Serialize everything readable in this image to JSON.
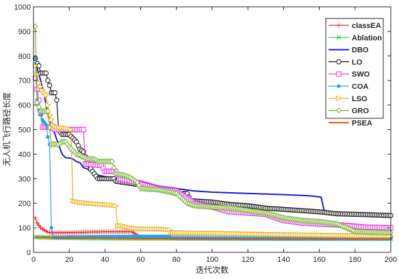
{
  "chart_data": {
    "type": "line",
    "title": "",
    "xlabel": "迭代次数",
    "ylabel": "无人机飞行路径长度",
    "xlim": [
      0,
      200
    ],
    "ylim": [
      0,
      1000
    ],
    "xticks": [
      0,
      20,
      40,
      60,
      80,
      100,
      120,
      140,
      160,
      180,
      200
    ],
    "yticks": [
      0,
      100,
      200,
      300,
      400,
      500,
      600,
      700,
      800,
      900,
      1000
    ],
    "grid": false,
    "legend_position": "top-right",
    "series": [
      {
        "name": "classEA",
        "color": "#e8262b",
        "marker": "plus",
        "points": [
          [
            1,
            140
          ],
          [
            2,
            120
          ],
          [
            4,
            100
          ],
          [
            6,
            90
          ],
          [
            8,
            82
          ],
          [
            10,
            80
          ],
          [
            20,
            80
          ],
          [
            30,
            82
          ],
          [
            40,
            84
          ],
          [
            50,
            84
          ],
          [
            55,
            84
          ],
          [
            60,
            62
          ],
          [
            80,
            62
          ],
          [
            100,
            60
          ],
          [
            150,
            58
          ],
          [
            200,
            58
          ]
        ]
      },
      {
        "name": "Ablation",
        "color": "#3ec03e",
        "marker": "x",
        "points": [
          [
            1,
            62
          ],
          [
            10,
            60
          ],
          [
            30,
            58
          ],
          [
            60,
            57
          ],
          [
            100,
            56
          ],
          [
            150,
            55
          ],
          [
            200,
            55
          ]
        ]
      },
      {
        "name": "DBO",
        "color": "#1b1bd8",
        "marker": "none",
        "points": [
          [
            1,
            765
          ],
          [
            2,
            750
          ],
          [
            4,
            700
          ],
          [
            6,
            640
          ],
          [
            8,
            560
          ],
          [
            10,
            520
          ],
          [
            12,
            480
          ],
          [
            14,
            440
          ],
          [
            16,
            400
          ],
          [
            18,
            385
          ],
          [
            20,
            385
          ],
          [
            22,
            380
          ],
          [
            24,
            370
          ],
          [
            26,
            365
          ],
          [
            28,
            345
          ],
          [
            30,
            340
          ],
          [
            32,
            330
          ],
          [
            36,
            315
          ],
          [
            42,
            305
          ],
          [
            50,
            300
          ],
          [
            60,
            290
          ],
          [
            70,
            270
          ],
          [
            80,
            260
          ],
          [
            90,
            250
          ],
          [
            100,
            245
          ],
          [
            120,
            240
          ],
          [
            140,
            235
          ],
          [
            155,
            230
          ],
          [
            161,
            225
          ],
          [
            163,
            160
          ],
          [
            170,
            157
          ],
          [
            180,
            155
          ],
          [
            190,
            153
          ],
          [
            200,
            152
          ]
        ]
      },
      {
        "name": "LO",
        "color": "#111111",
        "marker": "circle",
        "points": [
          [
            1,
            790
          ],
          [
            2,
            770
          ],
          [
            3,
            760
          ],
          [
            4,
            730
          ],
          [
            7,
            730
          ],
          [
            8,
            700
          ],
          [
            9,
            680
          ],
          [
            10,
            650
          ],
          [
            12,
            650
          ],
          [
            13,
            620
          ],
          [
            14,
            500
          ],
          [
            16,
            480
          ],
          [
            20,
            480
          ],
          [
            22,
            465
          ],
          [
            24,
            450
          ],
          [
            26,
            420
          ],
          [
            28,
            410
          ],
          [
            30,
            370
          ],
          [
            32,
            340
          ],
          [
            34,
            320
          ],
          [
            36,
            300
          ],
          [
            45,
            300
          ],
          [
            46,
            290
          ],
          [
            50,
            285
          ],
          [
            60,
            275
          ],
          [
            70,
            260
          ],
          [
            80,
            240
          ],
          [
            86,
            240
          ],
          [
            88,
            210
          ],
          [
            100,
            205
          ],
          [
            110,
            195
          ],
          [
            120,
            190
          ],
          [
            130,
            180
          ],
          [
            140,
            175
          ],
          [
            150,
            170
          ],
          [
            160,
            165
          ],
          [
            170,
            157
          ],
          [
            180,
            155
          ],
          [
            200,
            150
          ]
        ]
      },
      {
        "name": "SWO",
        "color": "#e32fe3",
        "marker": "square",
        "points": [
          [
            1,
            710
          ],
          [
            3,
            620
          ],
          [
            5,
            510
          ],
          [
            10,
            510
          ],
          [
            12,
            500
          ],
          [
            28,
            500
          ],
          [
            29,
            360
          ],
          [
            36,
            355
          ],
          [
            38,
            355
          ],
          [
            40,
            330
          ],
          [
            46,
            330
          ],
          [
            48,
            300
          ],
          [
            55,
            290
          ],
          [
            60,
            280
          ],
          [
            70,
            260
          ],
          [
            80,
            250
          ],
          [
            90,
            200
          ],
          [
            100,
            185
          ],
          [
            110,
            165
          ],
          [
            120,
            160
          ],
          [
            130,
            155
          ],
          [
            140,
            130
          ],
          [
            150,
            120
          ],
          [
            160,
            115
          ],
          [
            175,
            110
          ],
          [
            185,
            103
          ],
          [
            200,
            100
          ]
        ]
      },
      {
        "name": "COA",
        "color": "#2aa0e8",
        "marker": "dot",
        "points": [
          [
            1,
            790
          ],
          [
            2,
            620
          ],
          [
            3,
            580
          ],
          [
            5,
            540
          ],
          [
            7,
            520
          ],
          [
            8,
            470
          ],
          [
            9,
            440
          ],
          [
            10,
            100
          ],
          [
            11,
            60
          ],
          [
            20,
            62
          ],
          [
            40,
            64
          ],
          [
            60,
            65
          ],
          [
            76,
            65
          ],
          [
            77,
            58
          ],
          [
            100,
            57
          ],
          [
            150,
            56
          ],
          [
            200,
            56
          ]
        ]
      },
      {
        "name": "LSO",
        "color": "#e7ae12",
        "marker": "triangle-right",
        "points": [
          [
            1,
            760
          ],
          [
            3,
            690
          ],
          [
            5,
            660
          ],
          [
            7,
            640
          ],
          [
            9,
            560
          ],
          [
            11,
            520
          ],
          [
            13,
            510
          ],
          [
            18,
            505
          ],
          [
            21,
            500
          ],
          [
            22,
            210
          ],
          [
            25,
            205
          ],
          [
            30,
            200
          ],
          [
            40,
            195
          ],
          [
            46,
            190
          ],
          [
            47,
            108
          ],
          [
            50,
            108
          ],
          [
            54,
            100
          ],
          [
            60,
            95
          ],
          [
            70,
            95
          ],
          [
            76,
            92
          ],
          [
            77,
            80
          ],
          [
            100,
            78
          ],
          [
            120,
            75
          ],
          [
            140,
            72
          ],
          [
            160,
            70
          ],
          [
            180,
            68
          ],
          [
            200,
            67
          ]
        ]
      },
      {
        "name": "GRO",
        "color": "#77ac30",
        "marker": "diamond",
        "points": [
          [
            1,
            920
          ],
          [
            2,
            610
          ],
          [
            4,
            575
          ],
          [
            8,
            575
          ],
          [
            10,
            440
          ],
          [
            14,
            440
          ],
          [
            16,
            450
          ],
          [
            18,
            450
          ],
          [
            20,
            430
          ],
          [
            24,
            400
          ],
          [
            26,
            395
          ],
          [
            30,
            380
          ],
          [
            34,
            380
          ],
          [
            36,
            370
          ],
          [
            40,
            370
          ],
          [
            44,
            370
          ],
          [
            46,
            320
          ],
          [
            50,
            315
          ],
          [
            54,
            305
          ],
          [
            58,
            285
          ],
          [
            60,
            260
          ],
          [
            70,
            255
          ],
          [
            80,
            240
          ],
          [
            86,
            200
          ],
          [
            90,
            190
          ],
          [
            100,
            185
          ],
          [
            110,
            180
          ],
          [
            120,
            170
          ],
          [
            130,
            160
          ],
          [
            140,
            140
          ],
          [
            150,
            130
          ],
          [
            160,
            125
          ],
          [
            170,
            115
          ],
          [
            180,
            85
          ],
          [
            190,
            82
          ],
          [
            200,
            80
          ]
        ]
      },
      {
        "name": "PSEA",
        "color": "#d95319",
        "marker": "none",
        "points": [
          [
            1,
            62
          ],
          [
            10,
            60
          ],
          [
            30,
            58
          ],
          [
            60,
            56
          ],
          [
            100,
            55
          ],
          [
            150,
            54
          ],
          [
            200,
            54
          ]
        ]
      }
    ]
  }
}
